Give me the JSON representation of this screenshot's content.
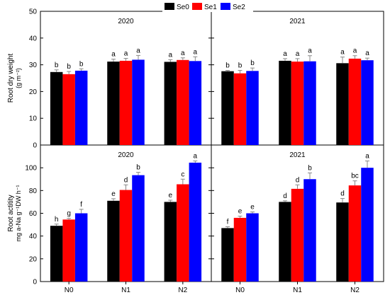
{
  "legend": {
    "placement": "top-center",
    "items": [
      {
        "label": "Se0",
        "color": "#000000"
      },
      {
        "label": "Se1",
        "color": "#ff0000"
      },
      {
        "label": "Se2",
        "color": "#0000ff"
      }
    ]
  },
  "chart_data": [
    {
      "type": "bar",
      "title": "2020",
      "ylabel_line1": "Root dry weight",
      "ylabel_line2": "(g m⁻²)",
      "ylim": [
        0,
        50
      ],
      "yticks": [
        0,
        10,
        20,
        30,
        40,
        50
      ],
      "categories": [
        "N0",
        "N1",
        "N2"
      ],
      "series": [
        {
          "name": "Se0",
          "color": "#000000",
          "values": [
            27.3,
            31.2,
            31.1
          ],
          "errors": [
            0.8,
            0.9,
            0.8
          ],
          "letters": [
            "b",
            "a",
            "a"
          ]
        },
        {
          "name": "Se1",
          "color": "#ff0000",
          "values": [
            26.5,
            31.5,
            31.8
          ],
          "errors": [
            1.0,
            0.9,
            0.8
          ],
          "letters": [
            "b",
            "a",
            "a"
          ]
        },
        {
          "name": "Se2",
          "color": "#0000ff",
          "values": [
            27.8,
            31.9,
            31.4
          ],
          "errors": [
            0.7,
            1.6,
            1.6
          ],
          "letters": [
            "b",
            "a",
            "a"
          ]
        }
      ]
    },
    {
      "type": "bar",
      "title": "2021",
      "ylim": [
        0,
        50
      ],
      "yticks": [
        0,
        10,
        20,
        30,
        40,
        50
      ],
      "categories": [
        "N0",
        "N1",
        "N2"
      ],
      "series": [
        {
          "name": "Se0",
          "color": "#000000",
          "values": [
            27.6,
            31.5,
            30.6
          ],
          "errors": [
            0.3,
            0.8,
            2.3
          ],
          "letters": [
            "b",
            "a",
            "a"
          ]
        },
        {
          "name": "Se1",
          "color": "#ff0000",
          "values": [
            26.8,
            31.2,
            32.3
          ],
          "errors": [
            1.1,
            1.1,
            1.1
          ],
          "letters": [
            "b",
            "a",
            "a"
          ]
        },
        {
          "name": "Se2",
          "color": "#0000ff",
          "values": [
            27.7,
            31.3,
            31.7
          ],
          "errors": [
            1.1,
            2.1,
            0.8
          ],
          "letters": [
            "b",
            "a",
            "a"
          ]
        }
      ]
    },
    {
      "type": "bar",
      "title": "2020",
      "ylabel_line1": "Root actitity",
      "ylabel_line2": "mg a-Na g⁻¹DW h⁻¹",
      "ylim": [
        0,
        120
      ],
      "yticks": [
        0,
        20,
        40,
        60,
        80,
        100,
        120
      ],
      "categories": [
        "N0",
        "N1",
        "N2"
      ],
      "series": [
        {
          "name": "Se0",
          "color": "#000000",
          "values": [
            49.0,
            71.0,
            70.0
          ],
          "errors": [
            1.5,
            1.8,
            1.5
          ],
          "letters": [
            "h",
            "e",
            "e"
          ]
        },
        {
          "name": "Se1",
          "color": "#ff0000",
          "values": [
            54.5,
            80.5,
            85.5
          ],
          "errors": [
            1.0,
            4.5,
            4.5
          ],
          "letters": [
            "g",
            "d",
            "c"
          ]
        },
        {
          "name": "Se2",
          "color": "#0000ff",
          "values": [
            60.0,
            93.5,
            104.5
          ],
          "errors": [
            3.5,
            2.5,
            1.5
          ],
          "letters": [
            "f",
            "b",
            "a"
          ]
        }
      ]
    },
    {
      "type": "bar",
      "title": "2021",
      "ylim": [
        0,
        120
      ],
      "yticks": [
        0,
        20,
        40,
        60,
        80,
        100,
        120
      ],
      "categories": [
        "N0",
        "N1",
        "N2"
      ],
      "series": [
        {
          "name": "Se0",
          "color": "#000000",
          "values": [
            47.0,
            70.0,
            69.5
          ],
          "errors": [
            1.2,
            1.0,
            3.5
          ],
          "letters": [
            "f",
            "d",
            "d"
          ]
        },
        {
          "name": "Se1",
          "color": "#ff0000",
          "values": [
            56.0,
            81.5,
            84.5
          ],
          "errors": [
            1.5,
            3.5,
            4.0
          ],
          "letters": [
            "e",
            "d",
            "bc"
          ]
        },
        {
          "name": "Se2",
          "color": "#0000ff",
          "values": [
            60.0,
            90.0,
            100.0
          ],
          "errors": [
            1.2,
            5.5,
            6.0
          ],
          "letters": [
            "e",
            "b",
            "a"
          ]
        }
      ]
    }
  ]
}
